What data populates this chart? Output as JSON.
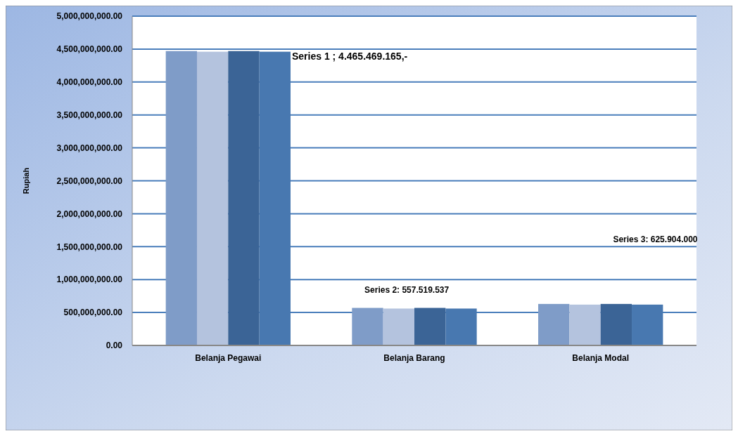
{
  "chart_data": {
    "type": "bar",
    "ylabel": "Rupiah",
    "categories": [
      "Belanja Pegawai",
      "Belanja Barang",
      "Belanja Modal"
    ],
    "series": [
      {
        "color": "#7f9cc8",
        "values": [
          4470000000,
          570000000,
          630000000
        ]
      },
      {
        "color": "#b4c3de",
        "values": [
          4460000000,
          560000000,
          620000000
        ]
      },
      {
        "color": "#3b6496",
        "values": [
          4470000000,
          570000000,
          630000000
        ]
      },
      {
        "color": "#4878b0",
        "values": [
          4460000000,
          560000000,
          620000000
        ]
      }
    ],
    "ylim": [
      0,
      5000000000
    ],
    "yticks": [
      {
        "value": 0,
        "label": "0.00"
      },
      {
        "value": 500000000,
        "label": "500,000,000.00"
      },
      {
        "value": 1000000000,
        "label": "1,000,000,000.00"
      },
      {
        "value": 1500000000,
        "label": "1,500,000,000.00"
      },
      {
        "value": 2000000000,
        "label": "2,000,000,000.00"
      },
      {
        "value": 2500000000,
        "label": "2,500,000,000.00"
      },
      {
        "value": 3000000000,
        "label": "3,000,000,000.00"
      },
      {
        "value": 3500000000,
        "label": "3,500,000,000.00"
      },
      {
        "value": 4000000000,
        "label": "4,000,000,000.00"
      },
      {
        "value": 4500000000,
        "label": "4,500,000,000.00"
      },
      {
        "value": 5000000000,
        "label": "5,000,000,000.00"
      }
    ],
    "grid": "y",
    "annotations": [
      "Series 1 ; 4.465.469.165,-",
      "Series 2:  557.519.537",
      "Series 3: 625.904.000"
    ]
  }
}
